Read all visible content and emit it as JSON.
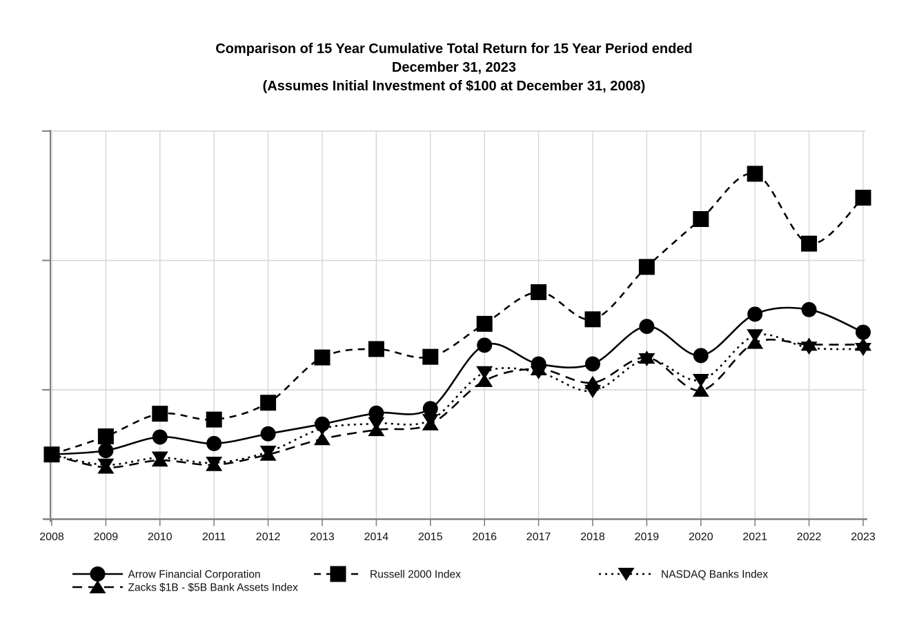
{
  "title": {
    "line1": "Comparison of 15 Year Cumulative Total Return for 15 Year Period ended",
    "line2": "December 31, 2023",
    "line3": "(Assumes Initial Investment of $100 at December 31, 2008)"
  },
  "chart_data": {
    "type": "line",
    "x": [
      "2008",
      "2009",
      "2010",
      "2011",
      "2012",
      "2013",
      "2014",
      "2015",
      "2016",
      "2017",
      "2018",
      "2019",
      "2020",
      "2021",
      "2022",
      "2023"
    ],
    "ylim": [
      0,
      620
    ],
    "y_gridlines": [
      200,
      400,
      600
    ],
    "y_axis_labels_visible": false,
    "grid": true,
    "legend_position": "bottom",
    "line_color": "#000000",
    "axis_color": "#7f7f7f",
    "grid_color": "#d4d4d4",
    "series": [
      {
        "id": "arrow-financial",
        "name": "Arrow Financial Corporation",
        "marker": "circle",
        "line_style": "solid",
        "values": [
          100,
          106,
          127,
          117,
          132,
          147,
          164,
          171,
          269,
          240,
          240,
          298,
          253,
          317,
          324,
          289
        ]
      },
      {
        "id": "russell-2000",
        "name": "Russell 2000 Index",
        "marker": "square",
        "line_style": "dashed",
        "values": [
          100,
          128,
          163,
          154,
          180,
          250,
          263,
          251,
          302,
          351,
          309,
          390,
          464,
          534,
          426,
          497
        ]
      },
      {
        "id": "nasdaq-banks",
        "name": "NASDAQ Banks Index",
        "marker": "triangle-down",
        "line_style": "dotted",
        "values": [
          100,
          84,
          95,
          87,
          104,
          140,
          148,
          153,
          227,
          227,
          198,
          247,
          215,
          284,
          265,
          263
        ]
      },
      {
        "id": "zacks-banks",
        "name": "Zacks $1B - $5B Bank Assets Index",
        "marker": "triangle-up",
        "line_style": "long-dash",
        "values": [
          100,
          80,
          91,
          84,
          100,
          124,
          138,
          147,
          214,
          232,
          211,
          250,
          199,
          273,
          270,
          270
        ]
      }
    ]
  }
}
